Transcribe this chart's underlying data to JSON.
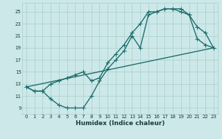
{
  "xlabel": "Humidex (Indice chaleur)",
  "bg_color": "#cce8e8",
  "grid_color": "#aacccc",
  "line_color": "#1a6b6b",
  "xlim": [
    -0.5,
    23.5
  ],
  "ylim": [
    8.0,
    26.5
  ],
  "xticks": [
    0,
    1,
    2,
    3,
    4,
    5,
    6,
    7,
    8,
    9,
    10,
    11,
    12,
    13,
    14,
    15,
    16,
    17,
    18,
    19,
    20,
    21,
    22,
    23
  ],
  "yticks": [
    9,
    11,
    13,
    15,
    17,
    19,
    21,
    23,
    25
  ],
  "line1_x": [
    0,
    1,
    2,
    3,
    4,
    5,
    6,
    7,
    8,
    9,
    10,
    11,
    12,
    13,
    14,
    15,
    16,
    17,
    18,
    19,
    20,
    21,
    22,
    23
  ],
  "line1_y": [
    12.5,
    11.8,
    11.8,
    10.5,
    9.5,
    9.0,
    9.0,
    9.0,
    11.0,
    13.5,
    15.5,
    17.0,
    18.5,
    21.0,
    19.0,
    24.5,
    25.0,
    25.5,
    25.5,
    25.5,
    24.5,
    20.5,
    19.5,
    19.0
  ],
  "line2_x": [
    0,
    1,
    2,
    3,
    4,
    5,
    6,
    7,
    8,
    9,
    10,
    11,
    12,
    13,
    14,
    15,
    16,
    17,
    18,
    19,
    20,
    21,
    22,
    23
  ],
  "line2_y": [
    12.5,
    11.8,
    11.8,
    13.0,
    13.5,
    14.0,
    14.5,
    15.0,
    13.5,
    14.0,
    16.5,
    18.0,
    19.5,
    21.5,
    23.0,
    25.0,
    25.0,
    25.5,
    25.5,
    25.0,
    24.5,
    22.5,
    21.5,
    19.0
  ],
  "line3_x": [
    0,
    23
  ],
  "line3_y": [
    12.5,
    19.0
  ],
  "markersize": 2.5,
  "linewidth": 1.0,
  "axis_fontsize": 6,
  "tick_fontsize": 5,
  "xlabel_fontsize": 6.5
}
